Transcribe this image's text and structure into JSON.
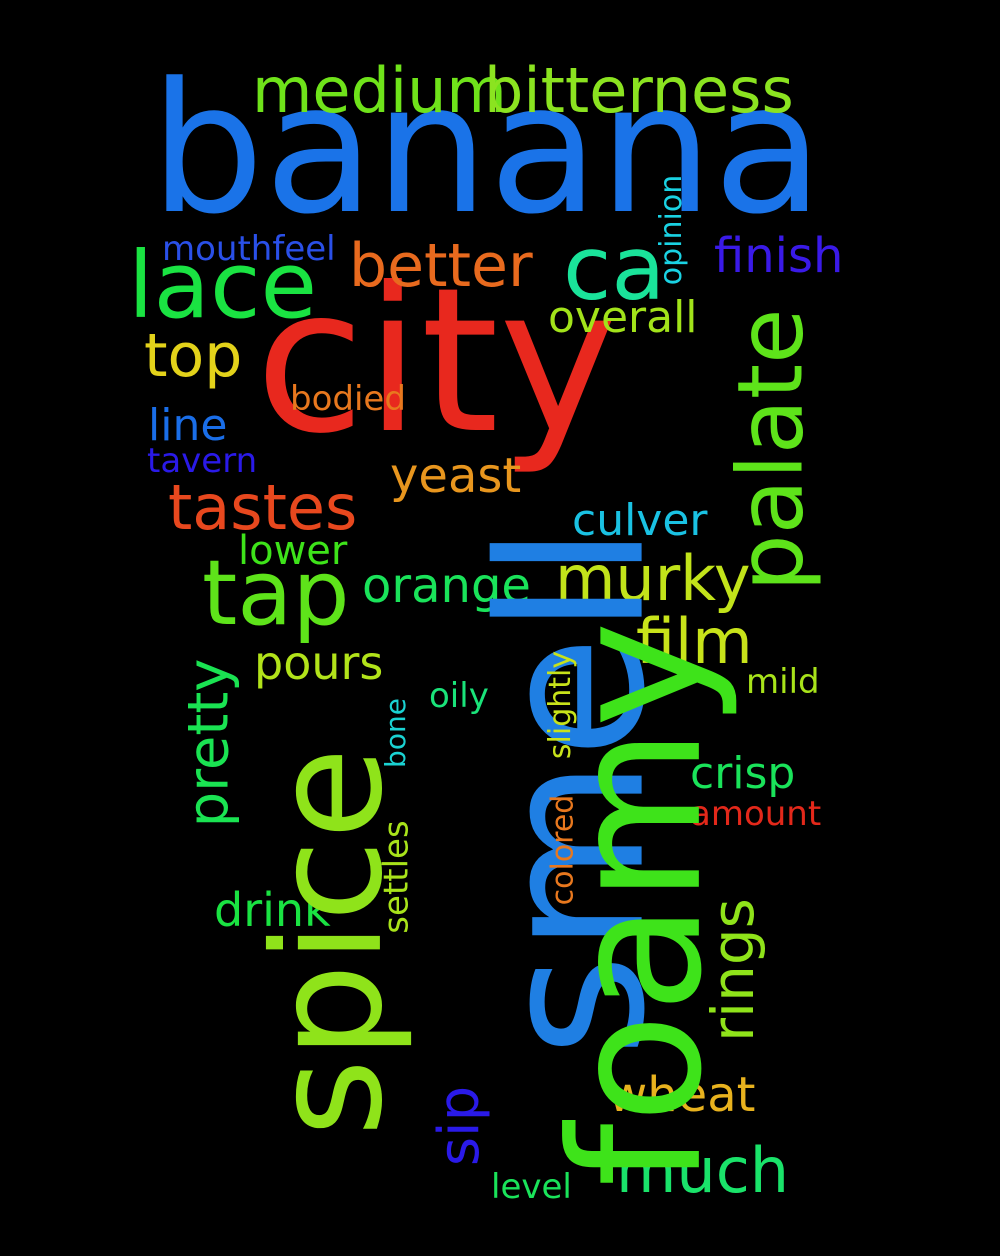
{
  "background": "#000000",
  "words": [
    {
      "text": "banana",
      "color": "#1a73e8"
    },
    {
      "text": "city",
      "color": "#e8281e"
    },
    {
      "text": "smell",
      "color": "#1f7fe3"
    },
    {
      "text": "foamy",
      "color": "#3ee31a"
    },
    {
      "text": "spice",
      "color": "#8fe31a"
    },
    {
      "text": "medium",
      "color": "#6fe31a"
    },
    {
      "text": "bitterness",
      "color": "#8be320"
    },
    {
      "text": "lace",
      "color": "#1ae342"
    },
    {
      "text": "better",
      "color": "#e86a1e"
    },
    {
      "text": "ca",
      "color": "#1ae39a"
    },
    {
      "text": "finish",
      "color": "#3a1ae8"
    },
    {
      "text": "mouthfeel",
      "color": "#2a50e8"
    },
    {
      "text": "opinion",
      "color": "#1ad2e3"
    },
    {
      "text": "palate",
      "color": "#5ee31a"
    },
    {
      "text": "overall",
      "color": "#a2e31a"
    },
    {
      "text": "top",
      "color": "#e3d21a"
    },
    {
      "text": "bodied",
      "color": "#e8781e"
    },
    {
      "text": "line",
      "color": "#1a6ee8"
    },
    {
      "text": "tavern",
      "color": "#2a1ae8"
    },
    {
      "text": "yeast",
      "color": "#e8961e"
    },
    {
      "text": "tastes",
      "color": "#e8481e"
    },
    {
      "text": "culver",
      "color": "#1ac2e3"
    },
    {
      "text": "lower",
      "color": "#3ee31a"
    },
    {
      "text": "tap",
      "color": "#5ee31a"
    },
    {
      "text": "orange",
      "color": "#1ae35a"
    },
    {
      "text": "murky",
      "color": "#c2e31a"
    },
    {
      "text": "film",
      "color": "#c8e31a"
    },
    {
      "text": "pretty",
      "color": "#1ae352"
    },
    {
      "text": "pours",
      "color": "#b2e31a"
    },
    {
      "text": "oily",
      "color": "#1ae37a"
    },
    {
      "text": "mild",
      "color": "#a8e31a"
    },
    {
      "text": "slightly",
      "color": "#c8e31a"
    },
    {
      "text": "bone",
      "color": "#1ad2d2"
    },
    {
      "text": "crisp",
      "color": "#1ae35a"
    },
    {
      "text": "amount",
      "color": "#e3281a"
    },
    {
      "text": "settles",
      "color": "#a8e31a"
    },
    {
      "text": "colored",
      "color": "#e8781e"
    },
    {
      "text": "drink",
      "color": "#1ae342"
    },
    {
      "text": "rings",
      "color": "#8fe31a"
    },
    {
      "text": "sip",
      "color": "#2a1ae8"
    },
    {
      "text": "wheat",
      "color": "#e8b21e"
    },
    {
      "text": "much",
      "color": "#1ae36a"
    },
    {
      "text": "level",
      "color": "#1ae35a"
    }
  ]
}
